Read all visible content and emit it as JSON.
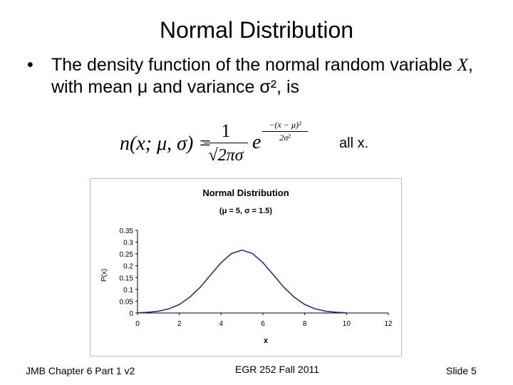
{
  "slide": {
    "title": "Normal Distribution",
    "bullet": "•",
    "bullet_prefix": "The density function of the normal random variable ",
    "bullet_var": "X",
    "bullet_suffix": ", with mean μ and variance σ², is",
    "all_x": "all x."
  },
  "formula": {
    "lhs": "n(x; μ, σ) =",
    "numerator": "1",
    "denominator": "√2πσ",
    "base": "e",
    "exp_num": "−(x − μ)²",
    "exp_den": "2σ²"
  },
  "chart_data": {
    "type": "line",
    "title": "Normal Distribution",
    "subtitle": "(μ = 5, σ = 1.5)",
    "xlabel": "x",
    "ylabel": "P(x)",
    "xlim": [
      0,
      12
    ],
    "ylim": [
      0,
      0.35
    ],
    "x_ticks": [
      "0",
      "2",
      "4",
      "6",
      "8",
      "10",
      "12"
    ],
    "y_ticks": [
      "0",
      "0.05",
      "0.1",
      "0.15",
      "0.2",
      "0.25",
      "0.3",
      "0.35"
    ],
    "grid": false,
    "series": [
      {
        "color": "#1f1f8f",
        "x": [
          0,
          0.5,
          1,
          1.5,
          2,
          2.5,
          3,
          3.5,
          4,
          4.5,
          5,
          5.5,
          6,
          6.5,
          7,
          7.5,
          8,
          8.5,
          9,
          9.5,
          10
        ],
        "y": [
          0.001,
          0.0029,
          0.0076,
          0.0174,
          0.036,
          0.0667,
          0.1093,
          0.1613,
          0.213,
          0.2516,
          0.266,
          0.2516,
          0.213,
          0.1613,
          0.1093,
          0.0667,
          0.036,
          0.0174,
          0.0076,
          0.0029,
          0.001
        ]
      }
    ]
  },
  "footer": {
    "left": "JMB Chapter 6 Part 1 v2",
    "center": "EGR 252 Fall 2011",
    "right": "Slide  5"
  }
}
